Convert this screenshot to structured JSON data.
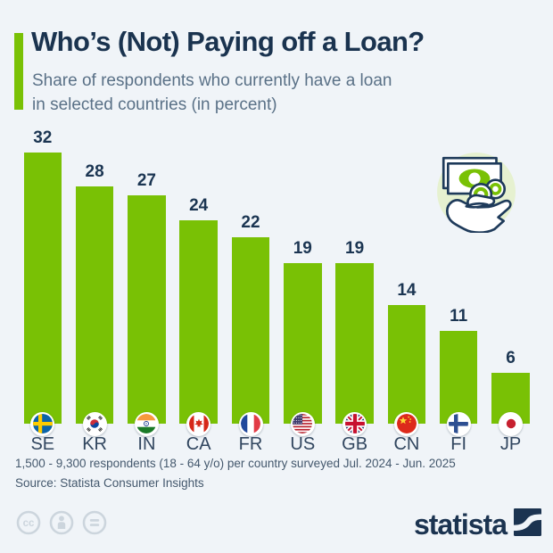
{
  "header": {
    "title": "Who’s (Not) Paying off a Loan?",
    "subtitle_line1": "Share of respondents who currently have a loan",
    "subtitle_line2": "in selected countries (in percent)"
  },
  "chart_data": {
    "type": "bar",
    "categories": [
      "SE",
      "KR",
      "IN",
      "CA",
      "FR",
      "US",
      "GB",
      "CN",
      "FI",
      "JP"
    ],
    "values": [
      32,
      28,
      27,
      24,
      22,
      19,
      19,
      14,
      11,
      6
    ],
    "title": "Who’s (Not) Paying off a Loan?",
    "xlabel": "",
    "ylabel": "",
    "ylim": [
      0,
      34
    ],
    "grid": false,
    "legend": false,
    "value_labels_shown": true,
    "category_flags": [
      "sweden-flag-icon",
      "south-korea-flag-icon",
      "india-flag-icon",
      "canada-flag-icon",
      "france-flag-icon",
      "united-states-flag-icon",
      "united-kingdom-flag-icon",
      "china-flag-icon",
      "finland-flag-icon",
      "japan-flag-icon"
    ]
  },
  "footer": {
    "note": "1,500 - 9,300 respondents (18 - 64 y/o) per country surveyed Jul. 2024 - Jun. 2025",
    "source": "Source: Statista Consumer Insights"
  },
  "branding": {
    "logo_text": "statista"
  },
  "icons": {
    "hero": "money-in-hand-icon",
    "license": [
      "creative-commons-icon",
      "attribution-person-icon",
      "no-derivatives-equals-icon"
    ],
    "logo_mark": "statista-swoosh-icon"
  },
  "colors": {
    "background": "#f0f4f8",
    "bar": "#79c105",
    "accent": "#79c105",
    "title": "#1a334f",
    "subtitle": "#5a7187",
    "value_label": "#1b3552",
    "country_label": "#31465f",
    "footer_text": "#44586d",
    "logo_navy": "#1b3350",
    "cc_gray": "#ccd5dd",
    "icon_circle_bg": "#e6f1d0",
    "icon_outline": "#1e3a5a"
  }
}
